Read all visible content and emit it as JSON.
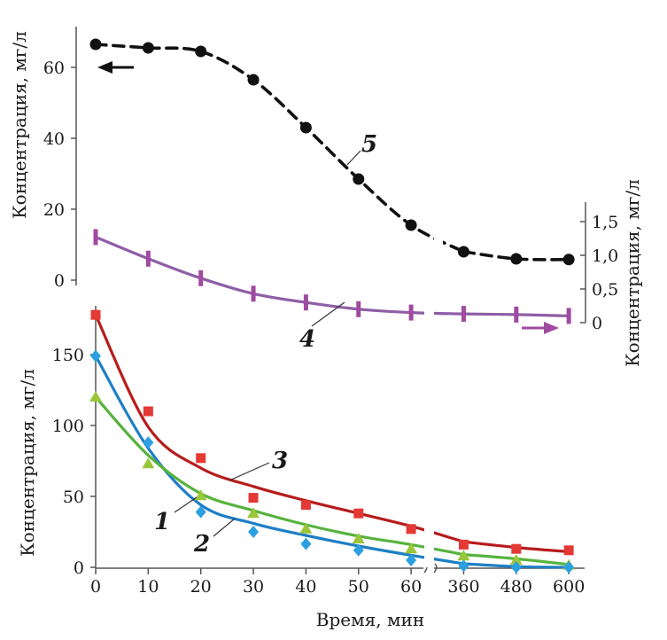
{
  "chart_data": [
    {
      "type": "line",
      "panel": "upper",
      "ylabel_left": "Концентрация, мг/л",
      "ylabel_right": "Концентрация, мг/л",
      "ylim_left": [
        0,
        70
      ],
      "yticks_left": [
        "0",
        "20",
        "40",
        "60"
      ],
      "ylim_right": [
        0,
        1.75
      ],
      "yticks_right": [
        "0",
        "0,5",
        "1,0",
        "1,5"
      ],
      "grid": false,
      "x_time_min": [
        0,
        10,
        20,
        30,
        40,
        50,
        60,
        360,
        480,
        600
      ],
      "series": [
        {
          "name": "5",
          "axis": "left",
          "color": "#111111",
          "marker": "circle",
          "line_style": "dashed",
          "points": [
            [
              0,
              66.5
            ],
            [
              10,
              65.5
            ],
            [
              20,
              64.5
            ],
            [
              30,
              56.5
            ],
            [
              40,
              43
            ],
            [
              50,
              28.5
            ],
            [
              60,
              15.5
            ],
            [
              360,
              8
            ],
            [
              480,
              6
            ],
            [
              600,
              5.8
            ]
          ]
        },
        {
          "name": "4",
          "axis": "right",
          "color": "#8e5ea6",
          "marker": "bar",
          "line_style": "solid",
          "points": [
            [
              0,
              1.27
            ],
            [
              10,
              0.95
            ],
            [
              20,
              0.66
            ],
            [
              30,
              0.43
            ],
            [
              40,
              0.3
            ],
            [
              50,
              0.2
            ],
            [
              60,
              0.15
            ],
            [
              360,
              0.13
            ],
            [
              480,
              0.12
            ],
            [
              600,
              0.1
            ]
          ]
        }
      ],
      "arrows": [
        {
          "points_to": "left",
          "color": "#111111"
        },
        {
          "points_to": "right",
          "color": "#a04aa0"
        }
      ]
    },
    {
      "type": "line",
      "panel": "lower",
      "xlabel": "Время, мин",
      "ylabel": "Концентрация, мг/л",
      "xticks": [
        "0",
        "10",
        "20",
        "30",
        "40",
        "50",
        "60",
        "360",
        "480",
        "600"
      ],
      "ylim": [
        0,
        185
      ],
      "yticks": [
        "0",
        "50",
        "100",
        "150"
      ],
      "grid": false,
      "x_time_min": [
        0,
        10,
        20,
        30,
        40,
        50,
        60,
        360,
        480,
        600
      ],
      "series": [
        {
          "name": "1",
          "color": "#1f7fc4",
          "marker_color": "#2aa0e0",
          "marker": "diamond",
          "points": [
            [
              0,
              149
            ],
            [
              10,
              88
            ],
            [
              20,
              39
            ],
            [
              30,
              25
            ],
            [
              40,
              16.5
            ],
            [
              50,
              12
            ],
            [
              60,
              5
            ],
            [
              360,
              1
            ],
            [
              480,
              0
            ],
            [
              600,
              0
            ]
          ],
          "curve": [
            [
              0,
              149
            ],
            [
              10,
              84
            ],
            [
              20,
              44
            ],
            [
              30,
              31
            ],
            [
              40,
              22.5
            ],
            [
              50,
              15
            ],
            [
              60,
              8.5
            ],
            [
              360,
              2.5
            ],
            [
              480,
              0.5
            ],
            [
              600,
              0
            ]
          ]
        },
        {
          "name": "2",
          "color": "#57b33e",
          "marker_color": "#9ac63a",
          "marker": "triangle",
          "points": [
            [
              0,
              120
            ],
            [
              10,
              73
            ],
            [
              20,
              50.5
            ],
            [
              30,
              38
            ],
            [
              40,
              27
            ],
            [
              50,
              20
            ],
            [
              60,
              13
            ],
            [
              360,
              8
            ],
            [
              480,
              5
            ],
            [
              600,
              1.5
            ]
          ],
          "curve": [
            [
              0,
              120
            ],
            [
              10,
              79
            ],
            [
              20,
              52
            ],
            [
              30,
              40
            ],
            [
              40,
              30
            ],
            [
              50,
              22
            ],
            [
              60,
              16
            ],
            [
              360,
              9
            ],
            [
              480,
              6
            ],
            [
              600,
              2
            ]
          ]
        },
        {
          "name": "3",
          "color": "#b71c1c",
          "marker_color": "#e53935",
          "marker": "square",
          "points": [
            [
              0,
              178
            ],
            [
              10,
              110
            ],
            [
              20,
              77
            ],
            [
              30,
              49
            ],
            [
              40,
              44
            ],
            [
              50,
              38
            ],
            [
              60,
              27
            ],
            [
              360,
              16
            ],
            [
              480,
              13
            ],
            [
              600,
              12
            ]
          ],
          "curve": [
            [
              0,
              178
            ],
            [
              10,
              99
            ],
            [
              20,
              70
            ],
            [
              30,
              57
            ],
            [
              40,
              47
            ],
            [
              50,
              38
            ],
            [
              60,
              29
            ],
            [
              360,
              18
            ],
            [
              480,
              14
            ],
            [
              600,
              11
            ]
          ]
        }
      ]
    }
  ]
}
